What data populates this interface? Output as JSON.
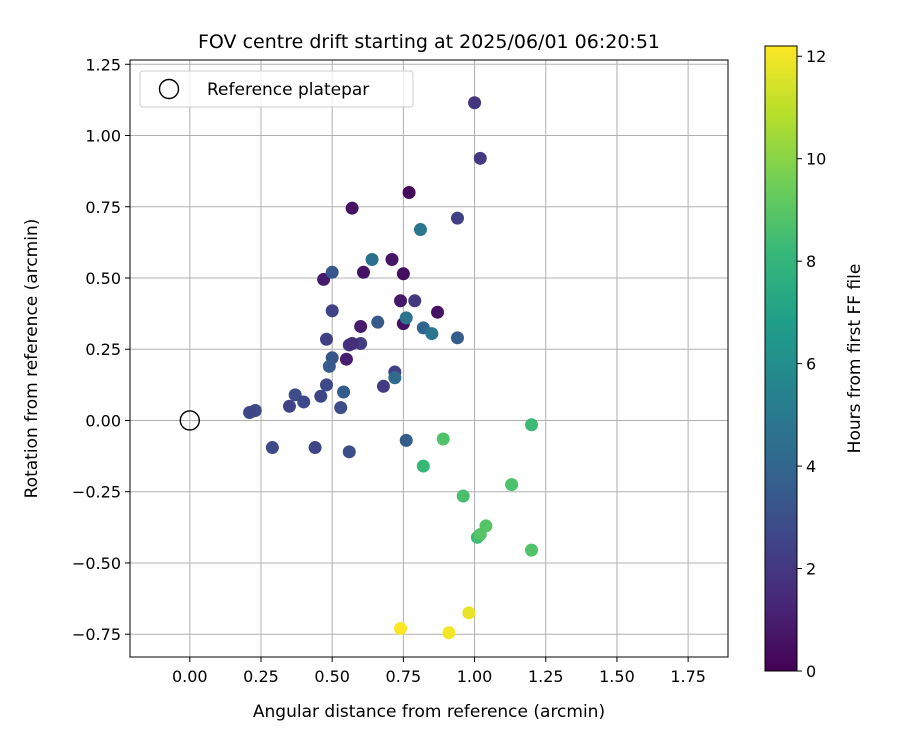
{
  "chart_data": {
    "type": "scatter",
    "title": "FOV centre drift starting at 2025/06/01 06:20:51",
    "xlabel": "Angular distance from reference (arcmin)",
    "ylabel": "Rotation from reference (arcmin)",
    "xlim": [
      -0.21,
      1.89
    ],
    "ylim": [
      -0.83,
      1.265
    ],
    "xticks": [
      0.0,
      0.25,
      0.5,
      0.75,
      1.0,
      1.25,
      1.5,
      1.75
    ],
    "xtick_labels": [
      "0.00",
      "0.25",
      "0.50",
      "0.75",
      "1.00",
      "1.25",
      "1.50",
      "1.75"
    ],
    "yticks": [
      -0.75,
      -0.5,
      -0.25,
      0.0,
      0.25,
      0.5,
      0.75,
      1.0,
      1.25
    ],
    "ytick_labels": [
      "−0.75",
      "−0.50",
      "−0.25",
      "0.00",
      "0.25",
      "0.50",
      "0.75",
      "1.00",
      "1.25"
    ],
    "grid": true,
    "legend": {
      "position": "top-left",
      "entries": [
        "Reference platepar"
      ]
    },
    "reference_point": {
      "x": 0.0,
      "y": 0.0
    },
    "colorbar": {
      "label": "Hours from first FF file",
      "min": 0,
      "max": 12.2,
      "ticks": [
        0,
        2,
        4,
        6,
        8,
        10,
        12
      ],
      "tick_labels": [
        "0",
        "2",
        "4",
        "6",
        "8",
        "10",
        "12"
      ],
      "colormap": "viridis",
      "stops": [
        "#440154",
        "#482878",
        "#3e4989",
        "#31688e",
        "#26828e",
        "#1f9e89",
        "#35b779",
        "#6ece58",
        "#b5de2b",
        "#fde725"
      ]
    },
    "points": [
      {
        "x": 0.77,
        "y": 0.8,
        "c": 0.3
      },
      {
        "x": 0.57,
        "y": 0.745,
        "c": 0.6
      },
      {
        "x": 0.71,
        "y": 0.565,
        "c": 0.7
      },
      {
        "x": 0.75,
        "y": 0.515,
        "c": 0.5
      },
      {
        "x": 0.61,
        "y": 0.52,
        "c": 0.6
      },
      {
        "x": 0.47,
        "y": 0.495,
        "c": 0.9
      },
      {
        "x": 0.74,
        "y": 0.42,
        "c": 0.8
      },
      {
        "x": 0.87,
        "y": 0.38,
        "c": 0.6
      },
      {
        "x": 0.75,
        "y": 0.34,
        "c": 0.5
      },
      {
        "x": 0.6,
        "y": 0.33,
        "c": 0.9
      },
      {
        "x": 0.55,
        "y": 0.215,
        "c": 1.0
      },
      {
        "x": 1.0,
        "y": 1.115,
        "c": 1.9
      },
      {
        "x": 1.02,
        "y": 0.92,
        "c": 2.1
      },
      {
        "x": 0.94,
        "y": 0.71,
        "c": 2.3
      },
      {
        "x": 0.79,
        "y": 0.42,
        "c": 2.0
      },
      {
        "x": 0.56,
        "y": 0.265,
        "c": 1.8
      },
      {
        "x": 0.6,
        "y": 0.27,
        "c": 2.2
      },
      {
        "x": 0.57,
        "y": 0.27,
        "c": 1.6
      },
      {
        "x": 0.48,
        "y": 0.285,
        "c": 2.3
      },
      {
        "x": 0.5,
        "y": 0.385,
        "c": 2.5
      },
      {
        "x": 0.72,
        "y": 0.17,
        "c": 2.4
      },
      {
        "x": 0.48,
        "y": 0.125,
        "c": 2.7
      },
      {
        "x": 0.46,
        "y": 0.085,
        "c": 2.6
      },
      {
        "x": 0.68,
        "y": 0.12,
        "c": 2.2
      },
      {
        "x": 0.37,
        "y": 0.09,
        "c": 2.9
      },
      {
        "x": 0.4,
        "y": 0.065,
        "c": 2.7
      },
      {
        "x": 0.35,
        "y": 0.05,
        "c": 2.5
      },
      {
        "x": 0.23,
        "y": 0.035,
        "c": 2.8
      },
      {
        "x": 0.21,
        "y": 0.028,
        "c": 2.6
      },
      {
        "x": 0.53,
        "y": 0.045,
        "c": 2.9
      },
      {
        "x": 0.29,
        "y": -0.095,
        "c": 2.8
      },
      {
        "x": 0.44,
        "y": -0.095,
        "c": 2.6
      },
      {
        "x": 0.56,
        "y": -0.11,
        "c": 2.9
      },
      {
        "x": 0.5,
        "y": 0.52,
        "c": 3.3
      },
      {
        "x": 0.66,
        "y": 0.345,
        "c": 3.4
      },
      {
        "x": 0.5,
        "y": 0.22,
        "c": 3.3
      },
      {
        "x": 0.49,
        "y": 0.19,
        "c": 3.5
      },
      {
        "x": 0.54,
        "y": 0.1,
        "c": 3.6
      },
      {
        "x": 0.72,
        "y": 0.15,
        "c": 4.2
      },
      {
        "x": 0.82,
        "y": 0.325,
        "c": 3.9
      },
      {
        "x": 0.94,
        "y": 0.29,
        "c": 3.6
      },
      {
        "x": 0.76,
        "y": -0.07,
        "c": 3.6
      },
      {
        "x": 0.64,
        "y": 0.565,
        "c": 4.5
      },
      {
        "x": 0.81,
        "y": 0.67,
        "c": 4.8
      },
      {
        "x": 0.76,
        "y": 0.36,
        "c": 4.6
      },
      {
        "x": 0.85,
        "y": 0.305,
        "c": 4.8
      },
      {
        "x": 1.2,
        "y": -0.015,
        "c": 8.3
      },
      {
        "x": 0.82,
        "y": -0.16,
        "c": 8.2
      },
      {
        "x": 0.89,
        "y": -0.065,
        "c": 8.8
      },
      {
        "x": 0.96,
        "y": -0.265,
        "c": 8.6
      },
      {
        "x": 1.13,
        "y": -0.225,
        "c": 8.7
      },
      {
        "x": 1.04,
        "y": -0.37,
        "c": 8.9
      },
      {
        "x": 1.01,
        "y": -0.41,
        "c": 8.3
      },
      {
        "x": 1.02,
        "y": -0.4,
        "c": 8.9
      },
      {
        "x": 1.2,
        "y": -0.455,
        "c": 8.8
      },
      {
        "x": 0.74,
        "y": -0.73,
        "c": 12.2
      },
      {
        "x": 0.91,
        "y": -0.745,
        "c": 12.0
      },
      {
        "x": 0.98,
        "y": -0.675,
        "c": 11.8
      }
    ]
  }
}
